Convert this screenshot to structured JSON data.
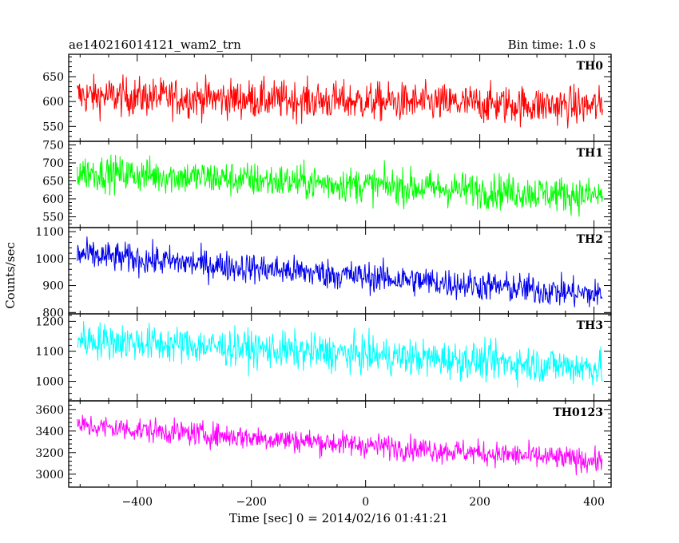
{
  "chart_data": {
    "type": "line",
    "title_left": "ae140216014121_wam2_trn",
    "title_right": "Bin time: 1.0 s",
    "xlabel": "Time [sec] 0 = 2014/02/16 01:41:21",
    "ylabel": "Counts/sec",
    "xlim": [
      -520,
      430
    ],
    "x_ticks": [
      -400,
      -200,
      0,
      200,
      400
    ],
    "x_range": [
      -505,
      415
    ],
    "panels": [
      {
        "name": "TH0",
        "color": "#ff0000",
        "ylim": [
          520,
          695
        ],
        "y_ticks": [
          550,
          600,
          650
        ],
        "start_level": 612,
        "end_level": 590,
        "noise": 38
      },
      {
        "name": "TH1",
        "color": "#00ff00",
        "ylim": [
          520,
          760
        ],
        "y_ticks": [
          550,
          600,
          650,
          700,
          750
        ],
        "start_level": 675,
        "end_level": 608,
        "noise": 48
      },
      {
        "name": "TH2",
        "color": "#0000ee",
        "ylim": [
          795,
          1115
        ],
        "y_ticks": [
          800,
          900,
          1000,
          1100
        ],
        "start_level": 1015,
        "end_level": 865,
        "noise": 55
      },
      {
        "name": "TH3",
        "color": "#00ffff",
        "ylim": [
          935,
          1225
        ],
        "y_ticks": [
          1000,
          1100,
          1200
        ],
        "start_level": 1140,
        "end_level": 1045,
        "noise": 60
      },
      {
        "name": "TH0123",
        "color": "#ff00ff",
        "ylim": [
          2880,
          3680
        ],
        "y_ticks": [
          3000,
          3200,
          3400,
          3600
        ],
        "start_level": 3450,
        "end_level": 3120,
        "noise": 110
      }
    ]
  }
}
